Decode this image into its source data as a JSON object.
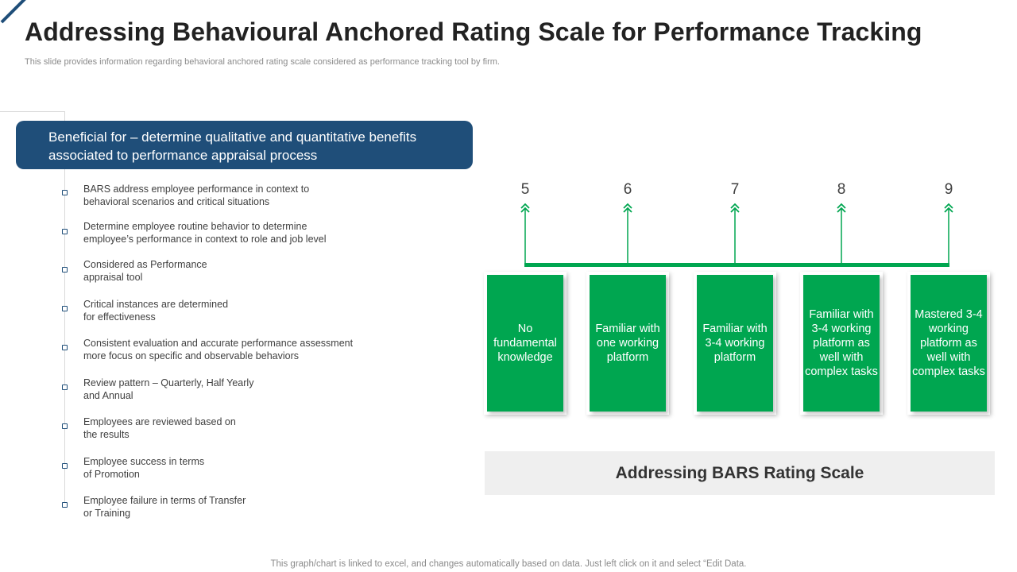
{
  "theme": {
    "accent_navy": "#1f4e79",
    "accent_green": "#00a650",
    "label_bg": "#efefef"
  },
  "header": {
    "title": "Addressing Behavioural Anchored Rating Scale for Performance Tracking",
    "subtitle": "This slide provides information regarding behavioral anchored rating scale considered as performance tracking tool by firm."
  },
  "banner": {
    "text": "Beneficial for – determine qualitative and quantitative benefits associated to performance appraisal process"
  },
  "bullets": [
    "BARS address employee performance  in context to\nbehavioral  scenarios and critical situations",
    "Determine employee routine behavior  to determine\nemployee’s performance  in context to role and job level",
    "Considered  as Performance\nappraisal tool",
    "Critical instances are determined\nfor effectiveness",
    "Consistent evaluation  and accurate performance  assessment\nmore focus on specific and observable  behaviors",
    "Review  pattern – Quarterly, Half Yearly\nand Annual",
    "Employees are reviewed  based on\nthe results",
    "Employee success in terms\nof Promotion",
    "Employee failure in terms of Transfer\nor Training"
  ],
  "rating_scale": {
    "levels": [
      {
        "score": "5",
        "description": "No fundamental knowledge"
      },
      {
        "score": "6",
        "description": "Familiar with one working platform"
      },
      {
        "score": "7",
        "description": "Familiar with 3-4 working platform"
      },
      {
        "score": "8",
        "description": "Familiar with 3-4 working platform as well with complex tasks"
      },
      {
        "score": "9",
        "description": "Mastered 3-4 working platform as well with complex tasks"
      }
    ],
    "label": "Addressing BARS Rating Scale"
  },
  "footer": {
    "note": "This graph/chart is linked to excel,  and changes automatically based on data. Just left click on it and select “Edit Data."
  }
}
